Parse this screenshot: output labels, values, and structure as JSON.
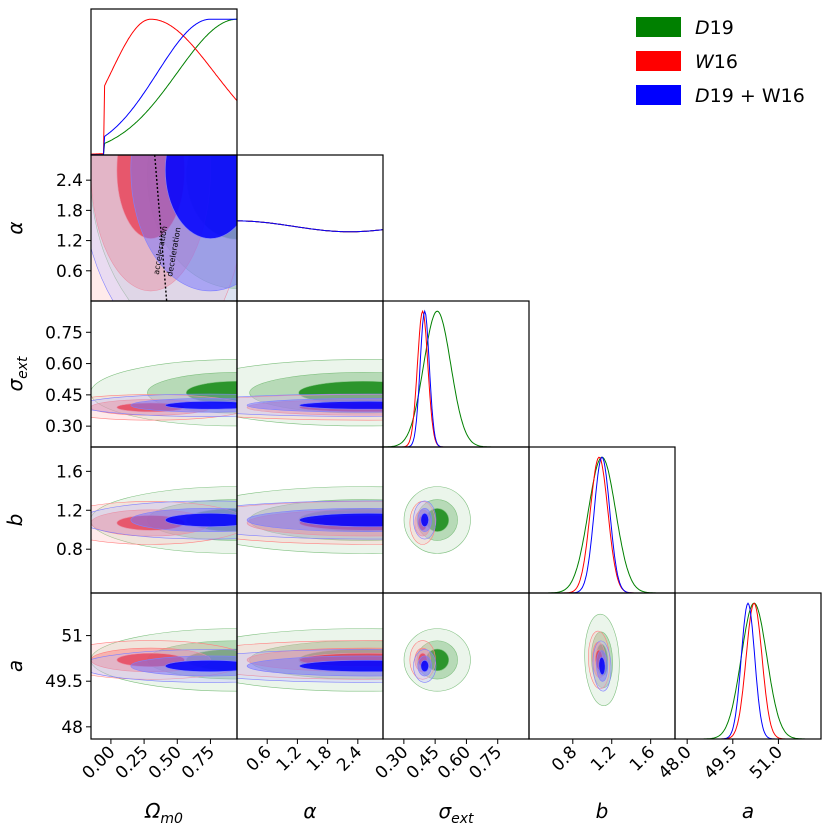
{
  "chart_data": {
    "type": "corner",
    "parameters": [
      {
        "key": "Om",
        "label": "Ω",
        "sub": "m0",
        "range": [
          -0.15,
          0.95
        ],
        "ticks": [
          "0.00",
          "0.25",
          "0.50",
          "0.75"
        ],
        "tick_values": [
          0.0,
          0.25,
          0.5,
          0.75
        ]
      },
      {
        "key": "alpha",
        "label": "α",
        "sub": "",
        "range": [
          0.0,
          2.9
        ],
        "ticks": [
          "0.6",
          "1.2",
          "1.8",
          "2.4"
        ],
        "tick_values": [
          0.6,
          1.2,
          1.8,
          2.4
        ]
      },
      {
        "key": "sigma",
        "label": "σ",
        "sub": "ext",
        "range": [
          0.2,
          0.9
        ],
        "ticks": [
          "0.30",
          "0.45",
          "0.60",
          "0.75"
        ],
        "tick_values": [
          0.3,
          0.45,
          0.6,
          0.75
        ]
      },
      {
        "key": "b",
        "label": "b",
        "sub": "",
        "range": [
          0.35,
          1.85
        ],
        "ticks": [
          "0.8",
          "1.2",
          "1.6"
        ],
        "tick_values": [
          0.8,
          1.2,
          1.6
        ]
      },
      {
        "key": "a",
        "label": "a",
        "sub": "",
        "range": [
          47.6,
          52.4
        ],
        "ticks": [
          "48.0",
          "49.5",
          "51.0"
        ],
        "tick_values": [
          48.0,
          49.5,
          51.0
        ]
      }
    ],
    "row_tick_overrides": {
      "a": [
        "48",
        "49.5",
        "51"
      ]
    },
    "series": [
      {
        "name": "D19",
        "label": "D",
        "label_num": "19",
        "color": "#008000",
        "mean": {
          "Om": 0.95,
          "alpha": 2.5,
          "sigma": 0.46,
          "b": 1.1,
          "a": 50.2
        },
        "sd": {
          "Om": 0.45,
          "alpha": 1.5,
          "sigma": 0.065,
          "b": 0.14,
          "a": 0.42
        }
      },
      {
        "name": "W16",
        "label": "W",
        "label_num": "16",
        "color": "#ff0000",
        "mean": {
          "Om": 0.3,
          "alpha": 2.6,
          "sigma": 0.39,
          "b": 1.07,
          "a": 50.2
        },
        "sd": {
          "Om": 0.3,
          "alpha": 1.6,
          "sigma": 0.025,
          "b": 0.09,
          "a": 0.26
        }
      },
      {
        "name": "D19 + W16",
        "label": "D",
        "label_num": "19 + W16",
        "color": "#0000ff",
        "mean": {
          "Om": 0.75,
          "alpha": 2.6,
          "sigma": 0.4,
          "b": 1.1,
          "a": 50.0
        },
        "sd": {
          "Om": 0.4,
          "alpha": 1.6,
          "sigma": 0.022,
          "b": 0.08,
          "a": 0.22
        }
      }
    ],
    "annotations": [
      "acceleration",
      "deceleration"
    ],
    "legend_position": "top-right",
    "grid": false
  }
}
